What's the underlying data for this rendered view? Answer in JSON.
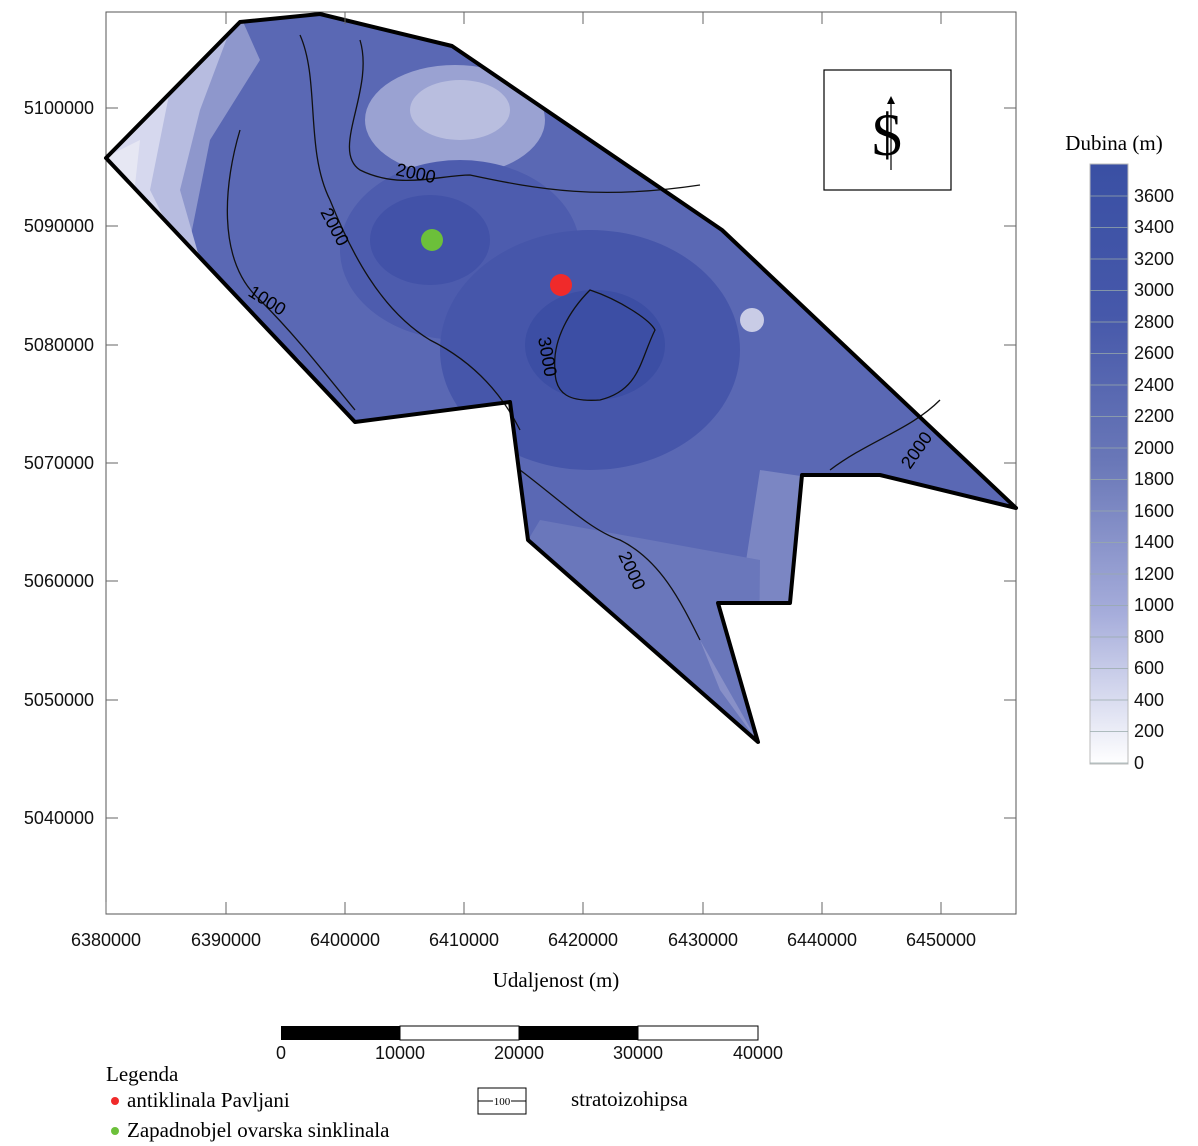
{
  "map": {
    "x_axis": {
      "label": "Udaljenost (m)",
      "ticks": [
        "6380000",
        "6390000",
        "6400000",
        "6410000",
        "6420000",
        "6430000",
        "6440000",
        "6450000"
      ]
    },
    "y_axis": {
      "ticks": [
        "5100000",
        "5090000",
        "5080000",
        "5070000",
        "5060000",
        "5050000",
        "5040000"
      ]
    },
    "contour_labels": [
      {
        "text": "2000"
      },
      {
        "text": "2000"
      },
      {
        "text": "1000"
      },
      {
        "text": "3000"
      },
      {
        "text": "2000"
      },
      {
        "text": "2000"
      }
    ],
    "north_symbol": "$",
    "colors": {
      "deep": "#3e52a6",
      "shallow": "#e9e9f3",
      "outline": "#000000",
      "anticline": "#f02a2a",
      "syncline": "#6cc03a"
    }
  },
  "colorbar": {
    "title": "Dubina (m)",
    "labels": [
      "3600",
      "3400",
      "3200",
      "3000",
      "2800",
      "2600",
      "2400",
      "2200",
      "2000",
      "1800",
      "1600",
      "1400",
      "1200",
      "1000",
      "800",
      "600",
      "400",
      "200",
      "0"
    ]
  },
  "scale_bar": {
    "labels": [
      "0",
      "10000",
      "20000",
      "30000",
      "40000"
    ]
  },
  "legend": {
    "title": "Legenda",
    "items": [
      {
        "label": "antiklinala Pavljani",
        "color": "#f02a2a"
      },
      {
        "label": "Zapadnobjel ovarska sinklinala",
        "color": "#6cc03a"
      }
    ],
    "line_item": {
      "sample": "100",
      "label": "stratoizohipsa"
    }
  }
}
